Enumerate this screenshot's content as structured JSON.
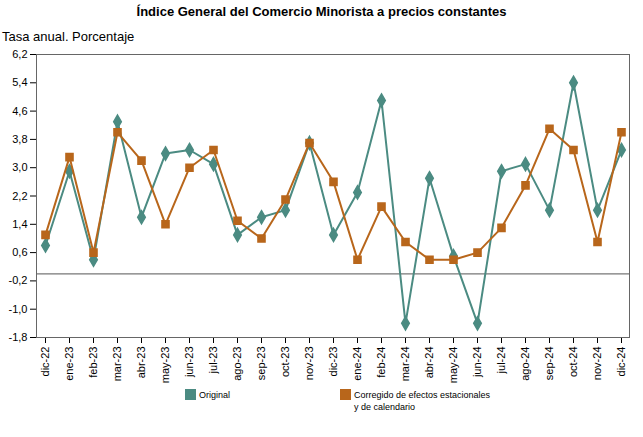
{
  "chart_data": {
    "type": "line",
    "title": "Índice General del Comercio Minorista a precios constantes",
    "subtitle": "Tasa anual. Porcentaje",
    "categories": [
      "dic-22",
      "ene-23",
      "feb-23",
      "mar-23",
      "abr-23",
      "may-23",
      "jun-23",
      "jul-23",
      "ago-23",
      "sep-23",
      "oct-23",
      "nov-23",
      "dic-23",
      "ene-24",
      "feb-24",
      "mar-24",
      "abr-24",
      "may-24",
      "jun-24",
      "jul-24",
      "ago-24",
      "sep-24",
      "oct-24",
      "nov-24",
      "dic-24"
    ],
    "series": [
      {
        "name": "Original",
        "color": "#4b8b82",
        "marker": "diamond",
        "values": [
          0.8,
          2.9,
          0.4,
          4.3,
          1.6,
          3.4,
          3.5,
          3.1,
          1.1,
          1.6,
          1.8,
          3.7,
          1.1,
          2.3,
          4.9,
          -1.4,
          2.7,
          0.5,
          -1.4,
          2.9,
          3.1,
          1.8,
          5.4,
          1.8,
          3.5
        ]
      },
      {
        "name": "Corregido de efectos estacionales y de calendario",
        "color": "#b8661b",
        "marker": "square",
        "values": [
          1.1,
          3.3,
          0.6,
          4.0,
          3.2,
          1.4,
          3.0,
          3.5,
          1.5,
          1.0,
          2.1,
          3.7,
          2.6,
          0.4,
          1.9,
          0.9,
          0.4,
          0.4,
          0.6,
          1.3,
          2.5,
          4.1,
          3.5,
          0.9,
          4.0
        ]
      }
    ],
    "ylim": [
      -1.8,
      6.2
    ],
    "yticks": [
      {
        "value": -1.8,
        "label": "-1,8"
      },
      {
        "value": -1.0,
        "label": "-1,0"
      },
      {
        "value": -0.2,
        "label": "-0,2"
      },
      {
        "value": 0.6,
        "label": "0,6"
      },
      {
        "value": 1.4,
        "label": "1,4"
      },
      {
        "value": 2.2,
        "label": "2,2"
      },
      {
        "value": 3.0,
        "label": "3,0"
      },
      {
        "value": 3.8,
        "label": "3,8"
      },
      {
        "value": 4.6,
        "label": "4,6"
      },
      {
        "value": 5.4,
        "label": "5,4"
      },
      {
        "value": 6.2,
        "label": "6,2"
      }
    ],
    "grid": false,
    "legend": "bottom"
  }
}
